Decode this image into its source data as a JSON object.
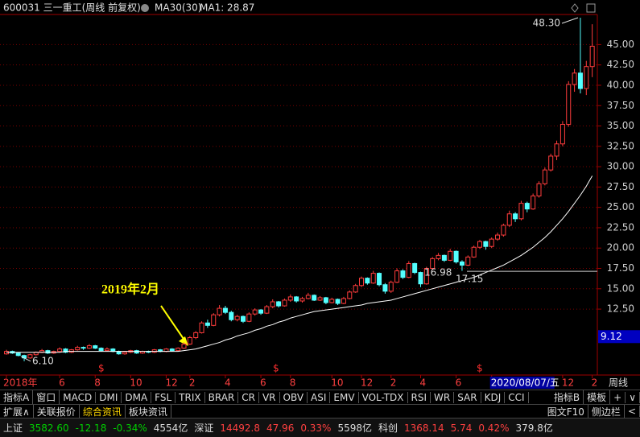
{
  "header": {
    "code_name": "600031 三一重工(周线 前复权)",
    "indicator": "MA30(30)",
    "ma_value": "MA1: 28.87"
  },
  "chart_data": {
    "type": "candlestick",
    "up_color": "#ff3c3c",
    "down_color": "#54ffff",
    "ma_color": "#ffffff",
    "categories": [
      "2018年",
      null,
      null,
      null,
      null,
      null,
      null,
      null,
      null,
      "6",
      null,
      null,
      null,
      null,
      null,
      "8",
      null,
      null,
      null,
      null,
      null,
      "10",
      null,
      null,
      null,
      null,
      null,
      "12",
      null,
      null,
      null,
      "2",
      null,
      null,
      null,
      null,
      null,
      "4",
      null,
      null,
      null,
      null,
      null,
      "6",
      null,
      null,
      null,
      null,
      "8",
      null,
      null,
      null,
      null,
      null,
      null,
      "10",
      null,
      null,
      null,
      null,
      "12",
      null,
      null,
      null,
      null,
      "2",
      null,
      null,
      null,
      null,
      "4",
      null,
      null,
      null,
      null,
      null,
      "6",
      null,
      null,
      null,
      null,
      null,
      "2020/08/07/五",
      null,
      null,
      null,
      null,
      null,
      null,
      null,
      null,
      null,
      null,
      null,
      "12",
      null,
      null,
      null,
      null,
      "2"
    ],
    "ohlc": [
      [
        7.0,
        7.5,
        6.9,
        7.3
      ],
      [
        7.3,
        7.4,
        7.0,
        7.1
      ],
      [
        7.1,
        7.2,
        6.7,
        6.8
      ],
      [
        6.8,
        6.9,
        6.1,
        6.5
      ],
      [
        6.5,
        7.0,
        6.4,
        6.9
      ],
      [
        6.9,
        7.3,
        6.8,
        7.2
      ],
      [
        7.2,
        7.6,
        7.1,
        7.4
      ],
      [
        7.4,
        7.5,
        7.0,
        7.1
      ],
      [
        7.1,
        7.4,
        7.0,
        7.3
      ],
      [
        7.3,
        7.8,
        7.2,
        7.6
      ],
      [
        7.6,
        7.7,
        7.1,
        7.2
      ],
      [
        7.2,
        7.6,
        7.1,
        7.5
      ],
      [
        7.5,
        8.0,
        7.4,
        7.8
      ],
      [
        7.8,
        7.9,
        7.5,
        7.7
      ],
      [
        7.7,
        8.2,
        7.6,
        8.0
      ],
      [
        8.0,
        8.1,
        7.6,
        7.7
      ],
      [
        7.7,
        7.8,
        7.3,
        7.4
      ],
      [
        7.4,
        7.8,
        7.3,
        7.6
      ],
      [
        7.6,
        7.7,
        7.2,
        7.3
      ],
      [
        7.3,
        7.4,
        6.9,
        7.0
      ],
      [
        7.0,
        7.3,
        6.9,
        7.2
      ],
      [
        7.2,
        7.5,
        7.1,
        7.4
      ],
      [
        7.4,
        7.5,
        7.0,
        7.1
      ],
      [
        7.1,
        7.4,
        7.0,
        7.3
      ],
      [
        7.3,
        7.4,
        7.1,
        7.2
      ],
      [
        7.2,
        7.6,
        7.1,
        7.5
      ],
      [
        7.5,
        7.6,
        7.2,
        7.3
      ],
      [
        7.3,
        7.7,
        7.2,
        7.6
      ],
      [
        7.6,
        7.7,
        7.3,
        7.4
      ],
      [
        7.4,
        7.8,
        7.3,
        7.7
      ],
      [
        7.7,
        8.4,
        7.6,
        8.2
      ],
      [
        8.2,
        9.2,
        8.1,
        9.0
      ],
      [
        9.0,
        9.8,
        8.8,
        9.6
      ],
      [
        9.6,
        11.0,
        9.5,
        10.8
      ],
      [
        10.8,
        11.2,
        10.2,
        10.5
      ],
      [
        10.5,
        12.0,
        10.4,
        11.8
      ],
      [
        11.8,
        13.0,
        11.6,
        12.6
      ],
      [
        12.6,
        12.9,
        11.9,
        12.1
      ],
      [
        12.1,
        12.3,
        11.0,
        11.2
      ],
      [
        11.2,
        11.8,
        11.0,
        11.6
      ],
      [
        11.6,
        11.7,
        10.8,
        11.0
      ],
      [
        11.0,
        12.1,
        10.9,
        11.9
      ],
      [
        11.9,
        12.6,
        11.7,
        12.4
      ],
      [
        12.4,
        12.5,
        11.8,
        12.0
      ],
      [
        12.0,
        13.0,
        11.9,
        12.8
      ],
      [
        12.8,
        13.7,
        12.6,
        13.4
      ],
      [
        13.4,
        13.5,
        12.7,
        12.9
      ],
      [
        12.9,
        13.8,
        12.8,
        13.6
      ],
      [
        13.6,
        14.3,
        13.4,
        14.0
      ],
      [
        14.0,
        14.1,
        13.3,
        13.5
      ],
      [
        13.5,
        14.0,
        13.3,
        13.8
      ],
      [
        13.8,
        14.5,
        13.7,
        14.2
      ],
      [
        14.2,
        14.3,
        13.5,
        13.6
      ],
      [
        13.6,
        14.1,
        13.5,
        13.9
      ],
      [
        13.9,
        14.0,
        13.1,
        13.3
      ],
      [
        13.3,
        13.9,
        13.2,
        13.7
      ],
      [
        13.7,
        13.8,
        13.0,
        13.2
      ],
      [
        13.2,
        14.0,
        13.1,
        13.8
      ],
      [
        13.8,
        14.8,
        13.7,
        14.6
      ],
      [
        14.6,
        15.6,
        14.5,
        15.4
      ],
      [
        15.4,
        16.5,
        15.2,
        16.3
      ],
      [
        16.3,
        16.4,
        15.5,
        15.7
      ],
      [
        15.7,
        17.2,
        15.6,
        16.9
      ],
      [
        16.9,
        17.0,
        15.3,
        15.5
      ],
      [
        15.5,
        15.7,
        14.4,
        14.7
      ],
      [
        14.7,
        16.0,
        14.5,
        15.8
      ],
      [
        15.8,
        17.5,
        15.7,
        17.2
      ],
      [
        17.2,
        17.4,
        16.2,
        16.4
      ],
      [
        16.4,
        18.4,
        16.3,
        18.1
      ],
      [
        18.1,
        18.2,
        16.8,
        17.0
      ],
      [
        17.0,
        17.1,
        15.2,
        15.6
      ],
      [
        15.6,
        17.7,
        15.5,
        17.5
      ],
      [
        17.5,
        18.9,
        17.3,
        18.7
      ],
      [
        18.7,
        19.4,
        18.5,
        19.1
      ],
      [
        19.1,
        19.2,
        18.3,
        18.5
      ],
      [
        18.5,
        19.9,
        18.4,
        19.6
      ],
      [
        19.6,
        19.7,
        18.1,
        18.3
      ],
      [
        18.3,
        18.5,
        17.2,
        17.9
      ],
      [
        17.9,
        19.1,
        17.8,
        18.9
      ],
      [
        18.9,
        20.3,
        18.8,
        20.1
      ],
      [
        20.1,
        21.0,
        19.9,
        20.8
      ],
      [
        20.8,
        20.9,
        19.8,
        20.2
      ],
      [
        20.2,
        21.3,
        20.0,
        21.1
      ],
      [
        21.1,
        21.9,
        20.9,
        21.6
      ],
      [
        21.6,
        23.0,
        21.4,
        22.8
      ],
      [
        22.8,
        24.6,
        22.6,
        24.2
      ],
      [
        24.2,
        24.4,
        23.2,
        23.6
      ],
      [
        23.6,
        25.8,
        23.4,
        25.5
      ],
      [
        25.5,
        25.7,
        24.4,
        24.8
      ],
      [
        24.8,
        26.7,
        24.7,
        26.4
      ],
      [
        26.4,
        28.2,
        26.2,
        27.9
      ],
      [
        27.9,
        29.9,
        27.7,
        29.6
      ],
      [
        29.6,
        31.6,
        29.4,
        31.3
      ],
      [
        31.3,
        33.2,
        30.8,
        32.8
      ],
      [
        32.8,
        35.6,
        32.5,
        35.2
      ],
      [
        35.2,
        40.5,
        34.9,
        40.1
      ],
      [
        40.1,
        42.0,
        39.2,
        41.5
      ],
      [
        41.5,
        48.3,
        39.0,
        39.6
      ],
      [
        39.6,
        43.0,
        38.8,
        42.3
      ],
      [
        42.3,
        47.5,
        41.0,
        44.8
      ]
    ],
    "ma_values": [
      7.2,
      7.2,
      7.2,
      7.2,
      7.2,
      7.2,
      7.2,
      7.2,
      7.2,
      7.2,
      7.3,
      7.3,
      7.3,
      7.3,
      7.3,
      7.3,
      7.3,
      7.3,
      7.3,
      7.3,
      7.3,
      7.3,
      7.3,
      7.3,
      7.3,
      7.3,
      7.3,
      7.3,
      7.3,
      7.3,
      7.4,
      7.5,
      7.6,
      7.8,
      8.0,
      8.2,
      8.4,
      8.7,
      8.9,
      9.2,
      9.4,
      9.6,
      9.9,
      10.1,
      10.4,
      10.6,
      10.9,
      11.1,
      11.4,
      11.6,
      11.8,
      12.0,
      12.2,
      12.3,
      12.4,
      12.5,
      12.6,
      12.7,
      12.8,
      12.9,
      13.0,
      13.2,
      13.3,
      13.4,
      13.5,
      13.6,
      13.8,
      14.0,
      14.2,
      14.4,
      14.6,
      14.8,
      15.0,
      15.2,
      15.4,
      15.6,
      15.8,
      16.0,
      16.2,
      16.4,
      16.7,
      17.0,
      17.3,
      17.6,
      17.9,
      18.3,
      18.7,
      19.1,
      19.6,
      20.1,
      20.7,
      21.3,
      22.0,
      22.8,
      23.6,
      24.5,
      25.5,
      26.5,
      27.6,
      28.87
    ],
    "ylim": [
      4.5,
      48.5
    ],
    "yticks": [
      {
        "value": 12.5,
        "label": "12.50"
      },
      {
        "value": 15,
        "label": "15.00"
      },
      {
        "value": 17.5,
        "label": "17.50"
      },
      {
        "value": 20,
        "label": "20.00"
      },
      {
        "value": 22.5,
        "label": "22.50"
      },
      {
        "value": 25,
        "label": "25.00"
      },
      {
        "value": 27.5,
        "label": "27.50"
      },
      {
        "value": 30,
        "label": "30.00"
      },
      {
        "value": 32.5,
        "label": "32.50"
      },
      {
        "value": 35,
        "label": "35.00"
      },
      {
        "value": 37.5,
        "label": "37.50"
      },
      {
        "value": 40,
        "label": "40.00"
      },
      {
        "value": 42.5,
        "label": "42.50"
      },
      {
        "value": 45,
        "label": "45.00"
      }
    ],
    "grid": true,
    "high_mark": {
      "value": 48.3,
      "label": "48.30"
    },
    "low_mark": {
      "value": 6.1,
      "label": "6.10"
    },
    "level_labels": [
      {
        "value": 16.98,
        "label": "16.98"
      },
      {
        "value": 17.15,
        "label": "17.15"
      }
    ],
    "cursor_price": {
      "value": 9.12,
      "label": "9.12"
    },
    "annotation": "2019年2月",
    "period_label": "周线",
    "dividend_label": "$"
  },
  "toolbar": {
    "left": [
      "指标A",
      "窗口",
      "MACD",
      "DMI",
      "DMA",
      "FSL",
      "TRIX",
      "BRAR",
      "CR",
      "VR",
      "OBV",
      "ASI",
      "EMV",
      "VOL-TDX",
      "RSI",
      "WR",
      "SAR",
      "KDJ",
      "CCI"
    ],
    "right": [
      "指标B",
      "模板",
      "+",
      "∨"
    ]
  },
  "tabs": {
    "left": [
      "扩展∧",
      "关联报价",
      "综合资讯",
      "板块资讯"
    ],
    "right": [
      "图文F10",
      "侧边栏",
      "<"
    ]
  },
  "status": [
    {
      "name": "上证",
      "price": "3582.60",
      "change": "-12.18",
      "pct": "-0.34%",
      "amount": "4554亿",
      "color": "#00d000"
    },
    {
      "name": "深证",
      "price": "14492.8",
      "change": "47.96",
      "pct": "0.33%",
      "amount": "5598亿",
      "color": "#ff4040"
    },
    {
      "name": "科创",
      "price": "1368.14",
      "change": "5.74",
      "pct": "0.42%",
      "amount": "379.8亿",
      "color": "#ff4040"
    }
  ]
}
